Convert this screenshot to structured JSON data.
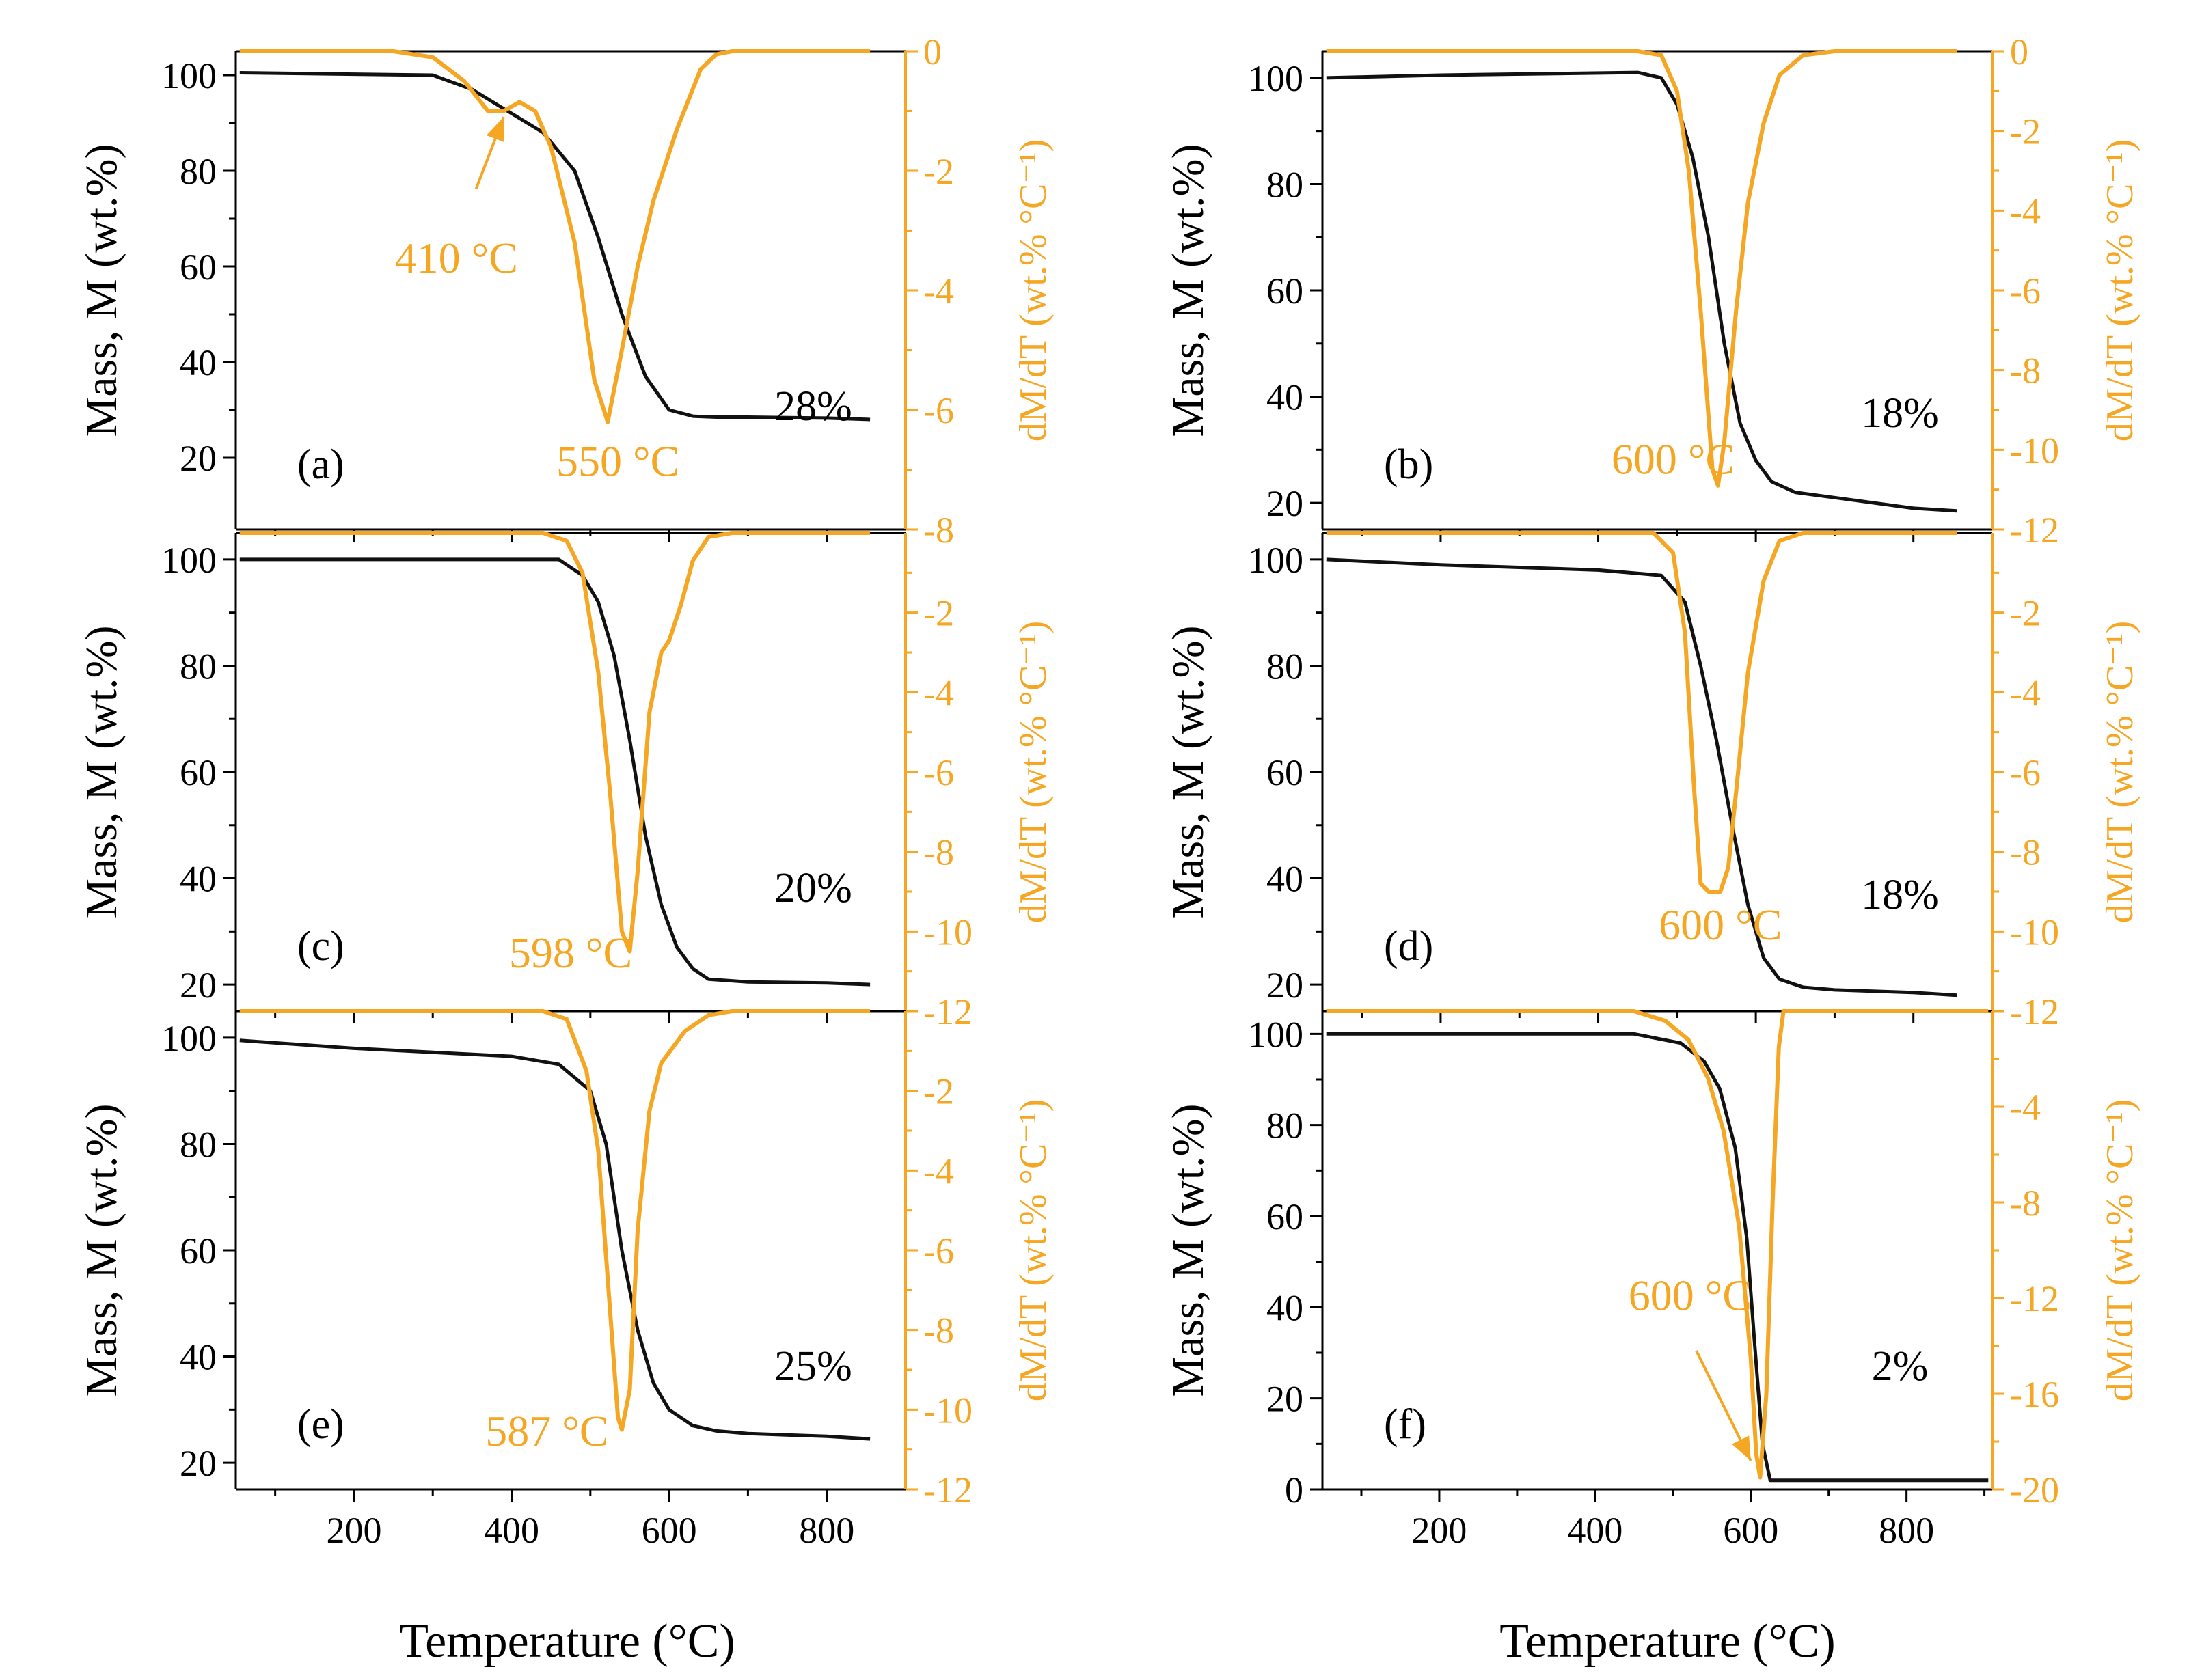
{
  "figure": {
    "xlabel": "Temperature (°C)",
    "ylabel_left": "Mass, M (wt.%)",
    "ylabel_right": "dM/dT (wt.% °C⁻¹)",
    "colors": {
      "mass": "#111111",
      "deriv": "#F5A623"
    }
  },
  "chart_data": [
    {
      "type": "line",
      "panel": "(a)",
      "xlim": [
        50,
        900
      ],
      "ylim_left": [
        5,
        105
      ],
      "ylim_right": [
        -8,
        0
      ],
      "left_ticks": [
        20,
        40,
        60,
        80,
        100
      ],
      "right_ticks": [
        0,
        -2,
        -4,
        -6,
        -8
      ],
      "x_ticks": [
        200,
        400,
        600,
        800
      ],
      "show_x_ticklabels": false,
      "residue_label": "28%",
      "series": [
        {
          "axis": "left",
          "x": [
            55,
            300,
            350,
            400,
            440,
            480,
            510,
            540,
            570,
            600,
            630,
            660,
            700,
            800,
            855
          ],
          "y": [
            100.5,
            100,
            97,
            92,
            88,
            80,
            66,
            50,
            37,
            30,
            28.7,
            28.5,
            28.5,
            28.3,
            28
          ]
        },
        {
          "axis": "right",
          "x": [
            55,
            250,
            300,
            340,
            370,
            390,
            410,
            430,
            450,
            480,
            505,
            522,
            540,
            560,
            580,
            610,
            640,
            660,
            680,
            855
          ],
          "y": [
            0,
            0,
            -0.1,
            -0.5,
            -1.0,
            -1.0,
            -0.85,
            -1.0,
            -1.6,
            -3.2,
            -5.5,
            -6.2,
            -5.0,
            -3.6,
            -2.5,
            -1.3,
            -0.3,
            -0.05,
            0,
            0
          ]
        }
      ],
      "annotations": [
        {
          "text": "410 °C",
          "tx": 330,
          "ty": -3.7,
          "arrow": {
            "from": [
              355,
              -2.3
            ],
            "to": [
              390,
              -1.1
            ]
          }
        },
        {
          "text": "550 °C",
          "tx": 535,
          "ty": -7.1,
          "arrow": null
        }
      ]
    },
    {
      "type": "line",
      "panel": "(b)",
      "xlim": [
        50,
        900
      ],
      "ylim_left": [
        15,
        105
      ],
      "ylim_right": [
        -12,
        0
      ],
      "left_ticks": [
        20,
        40,
        60,
        80,
        100
      ],
      "right_ticks": [
        0,
        -2,
        -4,
        -6,
        -8,
        -10,
        -12
      ],
      "x_ticks": [
        200,
        400,
        600,
        800
      ],
      "show_x_ticklabels": false,
      "residue_label": "18%",
      "series": [
        {
          "axis": "left",
          "x": [
            55,
            200,
            450,
            480,
            500,
            520,
            540,
            560,
            580,
            600,
            620,
            650,
            700,
            800,
            855
          ],
          "y": [
            100,
            100.5,
            101,
            100,
            95,
            85,
            70,
            50,
            35,
            28,
            24,
            22,
            21,
            19,
            18.5
          ]
        },
        {
          "axis": "right",
          "x": [
            55,
            450,
            480,
            500,
            515,
            530,
            545,
            552,
            560,
            575,
            590,
            610,
            630,
            660,
            700,
            855
          ],
          "y": [
            0,
            0,
            -0.1,
            -1,
            -3,
            -6.5,
            -10.5,
            -10.9,
            -9.8,
            -6.5,
            -3.8,
            -1.8,
            -0.6,
            -0.1,
            0,
            0
          ]
        }
      ],
      "annotations": [
        {
          "text": "600 °C",
          "tx": 495,
          "ty": -10.6,
          "arrow": null
        }
      ]
    },
    {
      "type": "line",
      "panel": "(c)",
      "xlim": [
        50,
        900
      ],
      "ylim_left": [
        15,
        105
      ],
      "ylim_right": [
        -12,
        0
      ],
      "left_ticks": [
        20,
        40,
        60,
        80,
        100
      ],
      "right_ticks": [
        -2,
        -4,
        -6,
        -8,
        -10,
        -12
      ],
      "x_ticks": [
        200,
        400,
        600,
        800
      ],
      "show_x_ticklabels": false,
      "residue_label": "20%",
      "series": [
        {
          "axis": "left",
          "x": [
            55,
            400,
            460,
            490,
            510,
            530,
            550,
            570,
            590,
            610,
            630,
            650,
            700,
            800,
            855
          ],
          "y": [
            100,
            100,
            100,
            97,
            92,
            82,
            66,
            48,
            35,
            27,
            23,
            21,
            20.5,
            20.3,
            20
          ]
        },
        {
          "axis": "right",
          "x": [
            55,
            440,
            470,
            490,
            510,
            525,
            540,
            550,
            560,
            575,
            590,
            600,
            615,
            630,
            650,
            680,
            855
          ],
          "y": [
            0,
            0,
            -0.2,
            -1.0,
            -3.5,
            -6.5,
            -10,
            -10.5,
            -8.5,
            -4.5,
            -3.0,
            -2.7,
            -1.8,
            -0.7,
            -0.1,
            0,
            0
          ]
        }
      ],
      "annotations": [
        {
          "text": "598 °C",
          "tx": 475,
          "ty": -10.9,
          "arrow": null
        }
      ]
    },
    {
      "type": "line",
      "panel": "(d)",
      "xlim": [
        50,
        900
      ],
      "ylim_left": [
        15,
        105
      ],
      "ylim_right": [
        -12,
        0
      ],
      "left_ticks": [
        20,
        40,
        60,
        80,
        100
      ],
      "right_ticks": [
        -2,
        -4,
        -6,
        -8,
        -10,
        -12
      ],
      "x_ticks": [
        200,
        400,
        600,
        800
      ],
      "show_x_ticklabels": false,
      "residue_label": "18%",
      "series": [
        {
          "axis": "left",
          "x": [
            55,
            200,
            400,
            480,
            510,
            530,
            550,
            570,
            590,
            610,
            630,
            660,
            700,
            800,
            855
          ],
          "y": [
            100,
            99,
            98,
            97,
            92,
            80,
            66,
            50,
            35,
            25,
            21,
            19.5,
            19,
            18.5,
            18
          ]
        },
        {
          "axis": "right",
          "x": [
            55,
            470,
            495,
            510,
            522,
            530,
            540,
            555,
            565,
            575,
            590,
            610,
            630,
            660,
            855
          ],
          "y": [
            0,
            0,
            -0.5,
            -2.5,
            -6.5,
            -8.8,
            -9.0,
            -9.0,
            -8.4,
            -6.5,
            -3.5,
            -1.2,
            -0.2,
            0,
            0
          ]
        }
      ],
      "annotations": [
        {
          "text": "600 °C",
          "tx": 555,
          "ty": -10.2,
          "arrow": null
        }
      ]
    },
    {
      "type": "line",
      "panel": "(e)",
      "xlim": [
        50,
        900
      ],
      "ylim_left": [
        15,
        105
      ],
      "ylim_right": [
        -12,
        0
      ],
      "left_ticks": [
        20,
        40,
        60,
        80,
        100
      ],
      "right_ticks": [
        -2,
        -4,
        -6,
        -8,
        -10,
        -12
      ],
      "x_ticks": [
        200,
        400,
        600,
        800
      ],
      "show_x_ticklabels": true,
      "residue_label": "25%",
      "series": [
        {
          "axis": "left",
          "x": [
            55,
            200,
            400,
            460,
            500,
            520,
            540,
            560,
            580,
            600,
            630,
            660,
            700,
            800,
            855
          ],
          "y": [
            99.5,
            98,
            96.5,
            95,
            90,
            80,
            60,
            45,
            35,
            30,
            27,
            26,
            25.5,
            25,
            24.5
          ]
        },
        {
          "axis": "right",
          "x": [
            55,
            440,
            470,
            495,
            510,
            525,
            535,
            540,
            550,
            560,
            575,
            590,
            620,
            650,
            680,
            855
          ],
          "y": [
            0,
            0,
            -0.2,
            -1.5,
            -3.5,
            -7.5,
            -10.2,
            -10.5,
            -9.5,
            -5.5,
            -2.5,
            -1.3,
            -0.5,
            -0.1,
            0,
            0
          ]
        }
      ],
      "annotations": [
        {
          "text": "587 °C",
          "tx": 445,
          "ty": -10.9,
          "arrow": null
        }
      ]
    },
    {
      "type": "line",
      "panel": "(f)",
      "xlim": [
        50,
        910
      ],
      "ylim_left": [
        0,
        105
      ],
      "ylim_right": [
        -20,
        0
      ],
      "left_ticks": [
        0,
        20,
        40,
        60,
        80,
        100
      ],
      "right_ticks": [
        -4,
        -8,
        -12,
        -16,
        -20
      ],
      "x_ticks": [
        200,
        400,
        600,
        800
      ],
      "show_x_ticklabels": true,
      "residue_label": "2%",
      "series": [
        {
          "axis": "left",
          "x": [
            55,
            300,
            450,
            510,
            540,
            560,
            580,
            595,
            605,
            615,
            625,
            640,
            700,
            800,
            905
          ],
          "y": [
            100,
            100,
            100,
            98,
            94,
            88,
            75,
            55,
            32,
            10,
            2,
            2,
            2,
            2,
            2
          ]
        },
        {
          "axis": "right",
          "x": [
            55,
            450,
            490,
            520,
            545,
            565,
            585,
            600,
            607,
            612,
            620,
            628,
            636,
            642,
            905
          ],
          "y": [
            0,
            0,
            -0.4,
            -1.2,
            -2.8,
            -5.0,
            -9.0,
            -14.5,
            -18.5,
            -19.5,
            -16.0,
            -8.0,
            -1.5,
            0,
            0
          ]
        }
      ],
      "annotations": [
        {
          "text": "600 °C",
          "tx": 522,
          "ty": -12.5,
          "arrow": {
            "from": [
              530,
              -14.2
            ],
            "to": [
              600,
              -18.8
            ]
          }
        }
      ]
    }
  ]
}
